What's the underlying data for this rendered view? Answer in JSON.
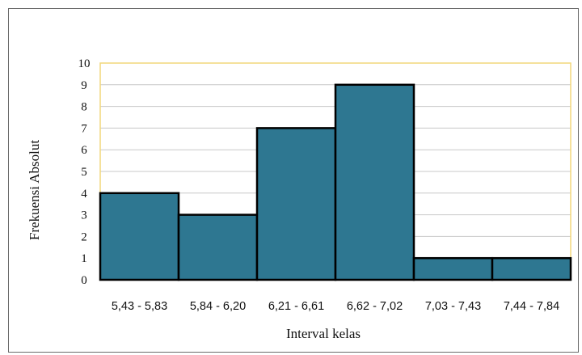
{
  "chart_data": {
    "type": "bar",
    "title": "",
    "xlabel": "Interval kelas",
    "ylabel": "Frekuensi Absolut",
    "categories": [
      "5,43 - 5,83",
      "5,84 - 6,20",
      "6,21 - 6,61",
      "6,62 - 7,02",
      "7,03 - 7,43",
      "7,44 - 7,84"
    ],
    "values": [
      4,
      3,
      7,
      9,
      1,
      1
    ],
    "ylim": [
      0,
      10
    ],
    "yticks": [
      0,
      1,
      2,
      3,
      4,
      5,
      6,
      7,
      8,
      9,
      10
    ],
    "grid": true,
    "bar_color": "#2e7791",
    "bar_edge_color": "#000000",
    "plot_border_color": "#f2d77a",
    "grid_color": "#c8c8c8"
  }
}
